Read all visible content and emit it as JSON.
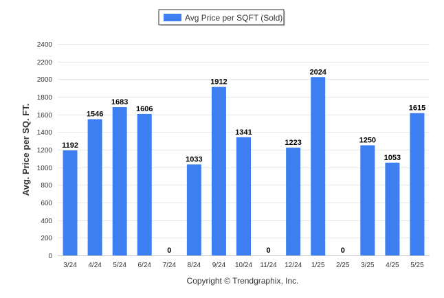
{
  "chart_data": {
    "type": "bar",
    "categories": [
      "3/24",
      "4/24",
      "5/24",
      "6/24",
      "7/24",
      "8/24",
      "9/24",
      "10/24",
      "11/24",
      "12/24",
      "1/25",
      "2/25",
      "3/25",
      "4/25",
      "5/25"
    ],
    "series": [
      {
        "name": "Avg Price per SQFT (Sold)",
        "values": [
          1192,
          1546,
          1683,
          1606,
          0,
          1033,
          1912,
          1341,
          0,
          1223,
          2024,
          0,
          1250,
          1053,
          1615
        ],
        "color": "#3d7ff0"
      }
    ],
    "ylabel": "Avg. Price per SQ. FT.",
    "xlabel": "",
    "ylim": [
      0,
      2400
    ],
    "yticks": [
      0,
      200,
      400,
      600,
      800,
      1000,
      1200,
      1400,
      1600,
      1800,
      2000,
      2200,
      2400
    ],
    "grid": true,
    "legend_position": "top-center",
    "data_labels": true
  },
  "legend": {
    "label": "Avg Price per SQFT (Sold)"
  },
  "credit": "Copyright © Trendgraphix, Inc."
}
